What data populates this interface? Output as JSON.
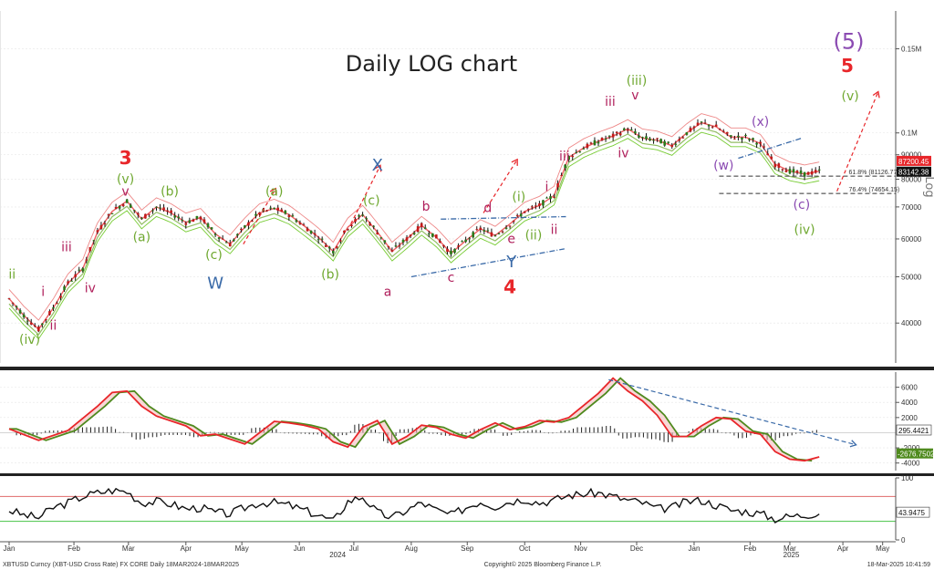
{
  "colors": {
    "red": "#e8262a",
    "green": "#6fa830",
    "purple": "#8b4bb2",
    "magenta": "#b0205c",
    "blue": "#3a6aa8",
    "olive": "#6d9a2e",
    "price": "#111111",
    "bandRed": "#e88",
    "bandGreen": "#7c3"
  },
  "chart_data": [
    {
      "type": "line",
      "title": "Daily LOG chart",
      "scale": "log",
      "ylabel": "Log",
      "xlim": [
        0,
        63
      ],
      "ylim": [
        33000,
        180000
      ],
      "x_ticks": [
        {
          "x": 0,
          "label": "Jan"
        },
        {
          "x": 4.4,
          "label": "Feb"
        },
        {
          "x": 8.1,
          "label": "Mar"
        },
        {
          "x": 12.0,
          "label": "Apr"
        },
        {
          "x": 15.8,
          "label": "May"
        },
        {
          "x": 19.7,
          "label": "Jun"
        },
        {
          "x": 23.4,
          "label": "Jul"
        },
        {
          "x": 27.3,
          "label": "Aug"
        },
        {
          "x": 31.1,
          "label": "Sep"
        },
        {
          "x": 35.0,
          "label": "Oct"
        },
        {
          "x": 38.8,
          "label": "Nov"
        },
        {
          "x": 42.6,
          "label": "Dec"
        },
        {
          "x": 46.5,
          "label": "Jan"
        },
        {
          "x": 50.3,
          "label": "Feb"
        },
        {
          "x": 53.0,
          "label": "Mar"
        },
        {
          "x": 56.6,
          "label": "Apr"
        },
        {
          "x": 59.3,
          "label": "May"
        }
      ],
      "year_labels": [
        {
          "x": 22.3,
          "label": "2024"
        },
        {
          "x": 53.1,
          "label": "2025"
        }
      ],
      "y_ticks": [
        {
          "v": 150000,
          "label": "0.15M"
        },
        {
          "v": 100000,
          "label": "0.1M"
        },
        {
          "v": 90000,
          "label": "90000"
        },
        {
          "v": 80000,
          "label": "80000"
        },
        {
          "v": 70000,
          "label": "70000"
        },
        {
          "v": 60000,
          "label": "60000"
        },
        {
          "v": 50000,
          "label": "50000"
        },
        {
          "v": 40000,
          "label": "40000"
        }
      ],
      "price": [
        [
          0,
          45000
        ],
        [
          1,
          41500
        ],
        [
          2,
          38800
        ],
        [
          3,
          43000
        ],
        [
          4,
          48500
        ],
        [
          5,
          52000
        ],
        [
          6,
          62000
        ],
        [
          7,
          68500
        ],
        [
          8,
          72000
        ],
        [
          9,
          66000
        ],
        [
          10,
          70000
        ],
        [
          11,
          68000
        ],
        [
          12,
          65000
        ],
        [
          13,
          66500
        ],
        [
          14,
          61500
        ],
        [
          15,
          58500
        ],
        [
          16,
          63500
        ],
        [
          17,
          68000
        ],
        [
          18,
          69500
        ],
        [
          19,
          67500
        ],
        [
          20,
          64000
        ],
        [
          21,
          60500
        ],
        [
          22,
          56500
        ],
        [
          23,
          63500
        ],
        [
          24,
          67500
        ],
        [
          25,
          62000
        ],
        [
          26,
          56500
        ],
        [
          27,
          60000
        ],
        [
          28,
          64000
        ],
        [
          29,
          60500
        ],
        [
          30,
          56000
        ],
        [
          31,
          59500
        ],
        [
          32,
          63000
        ],
        [
          33,
          61000
        ],
        [
          34,
          64500
        ],
        [
          35,
          68500
        ],
        [
          36,
          70500
        ],
        [
          37,
          74000
        ],
        [
          38,
          89000
        ],
        [
          39,
          93000
        ],
        [
          40,
          96000
        ],
        [
          41,
          98500
        ],
        [
          42,
          102000
        ],
        [
          43,
          97500
        ],
        [
          44,
          96500
        ],
        [
          45,
          94000
        ],
        [
          46,
          100000
        ],
        [
          47,
          105000
        ],
        [
          48,
          103000
        ],
        [
          49,
          98000
        ],
        [
          50,
          98000
        ],
        [
          51,
          95000
        ],
        [
          52,
          86000
        ],
        [
          53,
          83200
        ],
        [
          54,
          82000
        ],
        [
          55,
          83142
        ]
      ],
      "last_price_label": "83142.38",
      "upper_band_label": "87200.45",
      "fib_levels": [
        {
          "v": 81200,
          "label": "61.8% (81126.77)"
        },
        {
          "v": 74700,
          "label": "76.4% (74654.15)"
        }
      ],
      "projections": [
        {
          "from": [
            15.9,
            58500
          ],
          "to": [
            18.1,
            76500
          ]
        },
        {
          "from": [
            23.2,
            64500
          ],
          "to": [
            25.2,
            85500
          ]
        },
        {
          "from": [
            32.2,
            68000
          ],
          "to": [
            34.5,
            88000
          ]
        },
        {
          "from": [
            56.2,
            75500
          ],
          "to": [
            59.0,
            122000
          ]
        }
      ],
      "trendlines": [
        {
          "from": [
            27.3,
            50000
          ],
          "to": [
            37.7,
            57200
          ],
          "style": "dashdot"
        },
        {
          "from": [
            29.3,
            66000
          ],
          "to": [
            37.8,
            66800
          ],
          "style": "dashdot"
        },
        {
          "from": [
            49.5,
            88500
          ],
          "to": [
            53.8,
            97500
          ],
          "style": "dashdot"
        }
      ]
    },
    {
      "type": "line",
      "title": "",
      "ylim": [
        -5000,
        8000
      ],
      "y_ticks": [
        {
          "v": 6000,
          "label": "6000"
        },
        {
          "v": 4000,
          "label": "4000"
        },
        {
          "v": 2000,
          "label": "2000"
        },
        {
          "v": -2000,
          "label": "-2000"
        },
        {
          "v": -4000,
          "label": "-4000"
        }
      ],
      "zero_label": "295.4421",
      "signal_label": "-2676.7502",
      "fast": [
        [
          0,
          500
        ],
        [
          2,
          -1000
        ],
        [
          4,
          300
        ],
        [
          6,
          3500
        ],
        [
          7,
          5300
        ],
        [
          8,
          5500
        ],
        [
          9,
          3500
        ],
        [
          10,
          2200
        ],
        [
          12,
          900
        ],
        [
          13,
          -400
        ],
        [
          14,
          -200
        ],
        [
          16,
          -1500
        ],
        [
          17,
          0
        ],
        [
          18,
          1500
        ],
        [
          19,
          1300
        ],
        [
          20,
          1000
        ],
        [
          21,
          500
        ],
        [
          22,
          -1200
        ],
        [
          23,
          -1900
        ],
        [
          24,
          700
        ],
        [
          25,
          1600
        ],
        [
          26,
          -1500
        ],
        [
          27,
          -500
        ],
        [
          28,
          1000
        ],
        [
          29,
          700
        ],
        [
          30,
          -200
        ],
        [
          31,
          -700
        ],
        [
          32,
          400
        ],
        [
          33,
          1300
        ],
        [
          34,
          400
        ],
        [
          35,
          800
        ],
        [
          36,
          1600
        ],
        [
          37,
          1400
        ],
        [
          38,
          2000
        ],
        [
          40,
          5200
        ],
        [
          41,
          7200
        ],
        [
          42,
          5500
        ],
        [
          43,
          4200
        ],
        [
          44,
          2300
        ],
        [
          45,
          -500
        ],
        [
          46,
          -500
        ],
        [
          47,
          900
        ],
        [
          48,
          2000
        ],
        [
          49,
          1800
        ],
        [
          50,
          200
        ],
        [
          51,
          -200
        ],
        [
          52,
          -2500
        ],
        [
          53,
          -3500
        ],
        [
          54,
          -3700
        ],
        [
          55,
          -3200
        ]
      ],
      "trend_arrow": {
        "from": [
          40.7,
          7000
        ],
        "to": [
          57.5,
          -1600
        ]
      }
    },
    {
      "type": "line",
      "title": "",
      "ylim": [
        0,
        100
      ],
      "y_ticks": [
        {
          "v": 100,
          "label": "100"
        },
        {
          "v": 0,
          "label": "0"
        }
      ],
      "overbought": 70,
      "oversold": 30,
      "last_label": "43.9475",
      "rsi": [
        [
          0,
          48
        ],
        [
          1,
          40
        ],
        [
          2,
          36
        ],
        [
          3,
          52
        ],
        [
          4,
          60
        ],
        [
          5,
          70
        ],
        [
          6,
          76
        ],
        [
          7,
          80
        ],
        [
          8,
          78
        ],
        [
          9,
          60
        ],
        [
          10,
          62
        ],
        [
          11,
          58
        ],
        [
          12,
          50
        ],
        [
          13,
          52
        ],
        [
          14,
          44
        ],
        [
          15,
          42
        ],
        [
          16,
          52
        ],
        [
          17,
          60
        ],
        [
          18,
          60
        ],
        [
          19,
          56
        ],
        [
          20,
          48
        ],
        [
          21,
          40
        ],
        [
          22,
          30
        ],
        [
          23,
          62
        ],
        [
          24,
          70
        ],
        [
          25,
          44
        ],
        [
          26,
          36
        ],
        [
          27,
          48
        ],
        [
          28,
          60
        ],
        [
          29,
          48
        ],
        [
          30,
          40
        ],
        [
          31,
          52
        ],
        [
          32,
          62
        ],
        [
          33,
          54
        ],
        [
          34,
          62
        ],
        [
          35,
          66
        ],
        [
          36,
          60
        ],
        [
          37,
          64
        ],
        [
          38,
          72
        ],
        [
          39,
          74
        ],
        [
          40,
          76
        ],
        [
          41,
          70
        ],
        [
          42,
          64
        ],
        [
          43,
          60
        ],
        [
          44,
          50
        ],
        [
          45,
          52
        ],
        [
          46,
          62
        ],
        [
          47,
          64
        ],
        [
          48,
          56
        ],
        [
          49,
          48
        ],
        [
          50,
          46
        ],
        [
          51,
          42
        ],
        [
          52,
          34
        ],
        [
          53,
          38
        ],
        [
          54,
          40
        ],
        [
          55,
          44
        ]
      ]
    }
  ],
  "wave_labels": [
    {
      "text": "(5)",
      "x": 57.0,
      "v": 150000,
      "color": "purple",
      "size": "big5"
    },
    {
      "text": "5",
      "x": 56.9,
      "v": 134000,
      "color": "red",
      "size": "bigb"
    },
    {
      "text": "(v)",
      "x": 57.1,
      "v": 117000,
      "color": "green"
    },
    {
      "text": "3",
      "x": 7.9,
      "v": 86000,
      "color": "red",
      "size": "bigb"
    },
    {
      "text": "(v)",
      "x": 7.9,
      "v": 78500,
      "color": "green"
    },
    {
      "text": "v",
      "x": 7.9,
      "v": 74000,
      "color": "magenta"
    },
    {
      "text": "(b)",
      "x": 10.9,
      "v": 74000,
      "color": "green"
    },
    {
      "text": "(a)",
      "x": 9.0,
      "v": 59300,
      "color": "green"
    },
    {
      "text": "(a)",
      "x": 18.0,
      "v": 74000,
      "color": "green"
    },
    {
      "text": "(c)",
      "x": 13.9,
      "v": 54500,
      "color": "green"
    },
    {
      "text": "W",
      "x": 14.0,
      "v": 47200,
      "color": "blue",
      "size": "mid"
    },
    {
      "text": "X",
      "x": 25.0,
      "v": 83500,
      "color": "blue",
      "size": "mid"
    },
    {
      "text": "(c)",
      "x": 24.6,
      "v": 70800,
      "color": "green"
    },
    {
      "text": "(b)",
      "x": 21.8,
      "v": 49500,
      "color": "green"
    },
    {
      "text": "b",
      "x": 28.3,
      "v": 68700,
      "color": "magenta"
    },
    {
      "text": "d",
      "x": 32.5,
      "v": 68300,
      "color": "magenta"
    },
    {
      "text": "a",
      "x": 25.7,
      "v": 45600,
      "color": "magenta"
    },
    {
      "text": "c",
      "x": 30.0,
      "v": 48800,
      "color": "magenta"
    },
    {
      "text": "e",
      "x": 34.1,
      "v": 58800,
      "color": "magenta"
    },
    {
      "text": "Y",
      "x": 34.1,
      "v": 52300,
      "color": "blue",
      "size": "mid"
    },
    {
      "text": "4",
      "x": 34.0,
      "v": 46200,
      "color": "red",
      "size": "bigb"
    },
    {
      "text": "(i)",
      "x": 34.6,
      "v": 72000,
      "color": "green"
    },
    {
      "text": "i",
      "x": 36.5,
      "v": 75500,
      "color": "magenta"
    },
    {
      "text": "(ii)",
      "x": 35.6,
      "v": 59800,
      "color": "green"
    },
    {
      "text": "ii",
      "x": 37.0,
      "v": 61500,
      "color": "magenta"
    },
    {
      "text": "iii",
      "x": 37.7,
      "v": 87500,
      "color": "magenta"
    },
    {
      "text": "iii",
      "x": 40.8,
      "v": 114000,
      "color": "magenta"
    },
    {
      "text": "(iii)",
      "x": 42.6,
      "v": 126000,
      "color": "green"
    },
    {
      "text": "v",
      "x": 42.5,
      "v": 117500,
      "color": "magenta"
    },
    {
      "text": "iv",
      "x": 41.7,
      "v": 89000,
      "color": "magenta"
    },
    {
      "text": "(x)",
      "x": 51.0,
      "v": 103500,
      "color": "purple"
    },
    {
      "text": "(w)",
      "x": 48.5,
      "v": 83800,
      "color": "purple"
    },
    {
      "text": "(c)",
      "x": 53.8,
      "v": 69300,
      "color": "purple"
    },
    {
      "text": "(iv)",
      "x": 54.0,
      "v": 61500,
      "color": "green"
    },
    {
      "text": "ii",
      "x": 0.2,
      "v": 49500,
      "color": "green"
    },
    {
      "text": "i",
      "x": 2.3,
      "v": 45600,
      "color": "magenta"
    },
    {
      "text": "ii",
      "x": 3.0,
      "v": 38700,
      "color": "magenta"
    },
    {
      "text": "iii",
      "x": 3.9,
      "v": 56500,
      "color": "magenta"
    },
    {
      "text": "iv",
      "x": 5.5,
      "v": 46400,
      "color": "magenta"
    },
    {
      "text": "(iv)",
      "x": 1.4,
      "v": 36200,
      "color": "green"
    }
  ],
  "footer": {
    "left": "XBTUSD Curncy (XBT-USD Cross Rate) FX CORE   Daily 18MAR2024-18MAR2025",
    "center": "Copyright© 2025 Bloomberg Finance L.P.",
    "right": "18-Mar-2025 10:41:59"
  }
}
